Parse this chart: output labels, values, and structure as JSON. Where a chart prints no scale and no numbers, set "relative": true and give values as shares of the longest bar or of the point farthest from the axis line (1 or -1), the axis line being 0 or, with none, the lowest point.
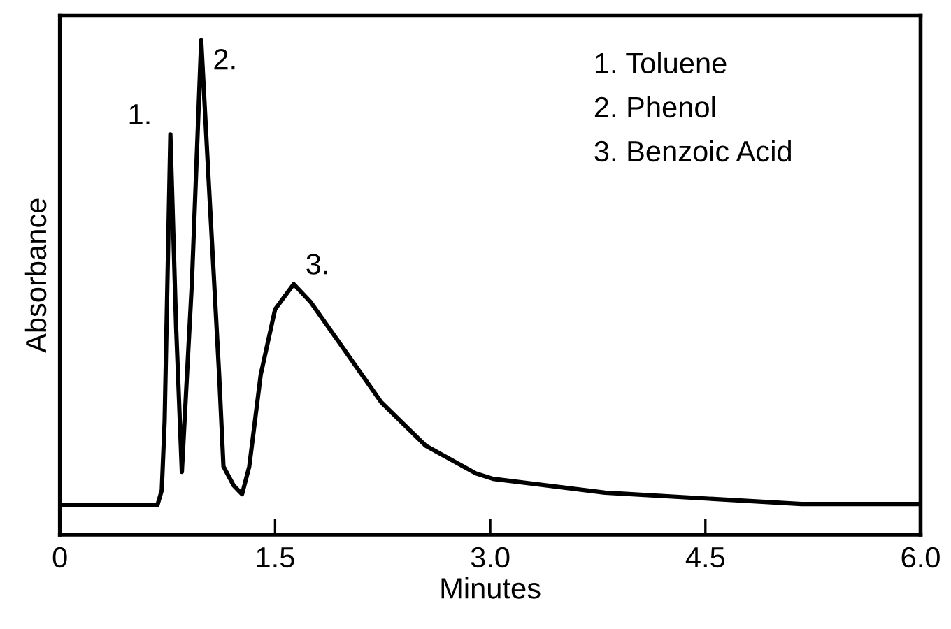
{
  "chart_data": {
    "type": "line",
    "relative": true,
    "xlabel": "Minutes",
    "ylabel": "Absorbance",
    "xlim": [
      0,
      6.0
    ],
    "xticks": [
      0,
      1.5,
      {
        "value": 3.0,
        "label": "3.0"
      },
      4.5,
      {
        "value": 6.0,
        "label": "6.0"
      }
    ],
    "grid": false,
    "legend": false,
    "marker": "none",
    "line_style": "solid",
    "series": [
      {
        "color": "#000000",
        "x": [
          0,
          0.68,
          0.71,
          0.73,
          0.77,
          0.81,
          0.85,
          0.92,
          0.985,
          1.04,
          1.11,
          1.14,
          1.21,
          1.27,
          1.32,
          1.4,
          1.5,
          1.63,
          1.75,
          1.92,
          2.24,
          2.55,
          2.9,
          3.02,
          3.8,
          5.17,
          6.0
        ],
        "values": [
          0.06,
          0.06,
          0.09,
          0.23,
          0.81,
          0.42,
          0.127,
          0.51,
          1.0,
          0.7,
          0.324,
          0.138,
          0.1,
          0.082,
          0.138,
          0.324,
          0.456,
          0.507,
          0.47,
          0.4,
          0.268,
          0.18,
          0.124,
          0.113,
          0.085,
          0.062,
          0.062
        ]
      }
    ],
    "annotations": [
      {
        "text": "1.",
        "x": 0.77,
        "y": 0.81
      },
      {
        "text": "2.",
        "x": 0.985,
        "y": 1.0
      },
      {
        "text": "3.",
        "x": 1.63,
        "y": 0.507
      },
      "1. Toluene",
      "2. Phenol",
      "3. Benzoic Acid"
    ]
  }
}
